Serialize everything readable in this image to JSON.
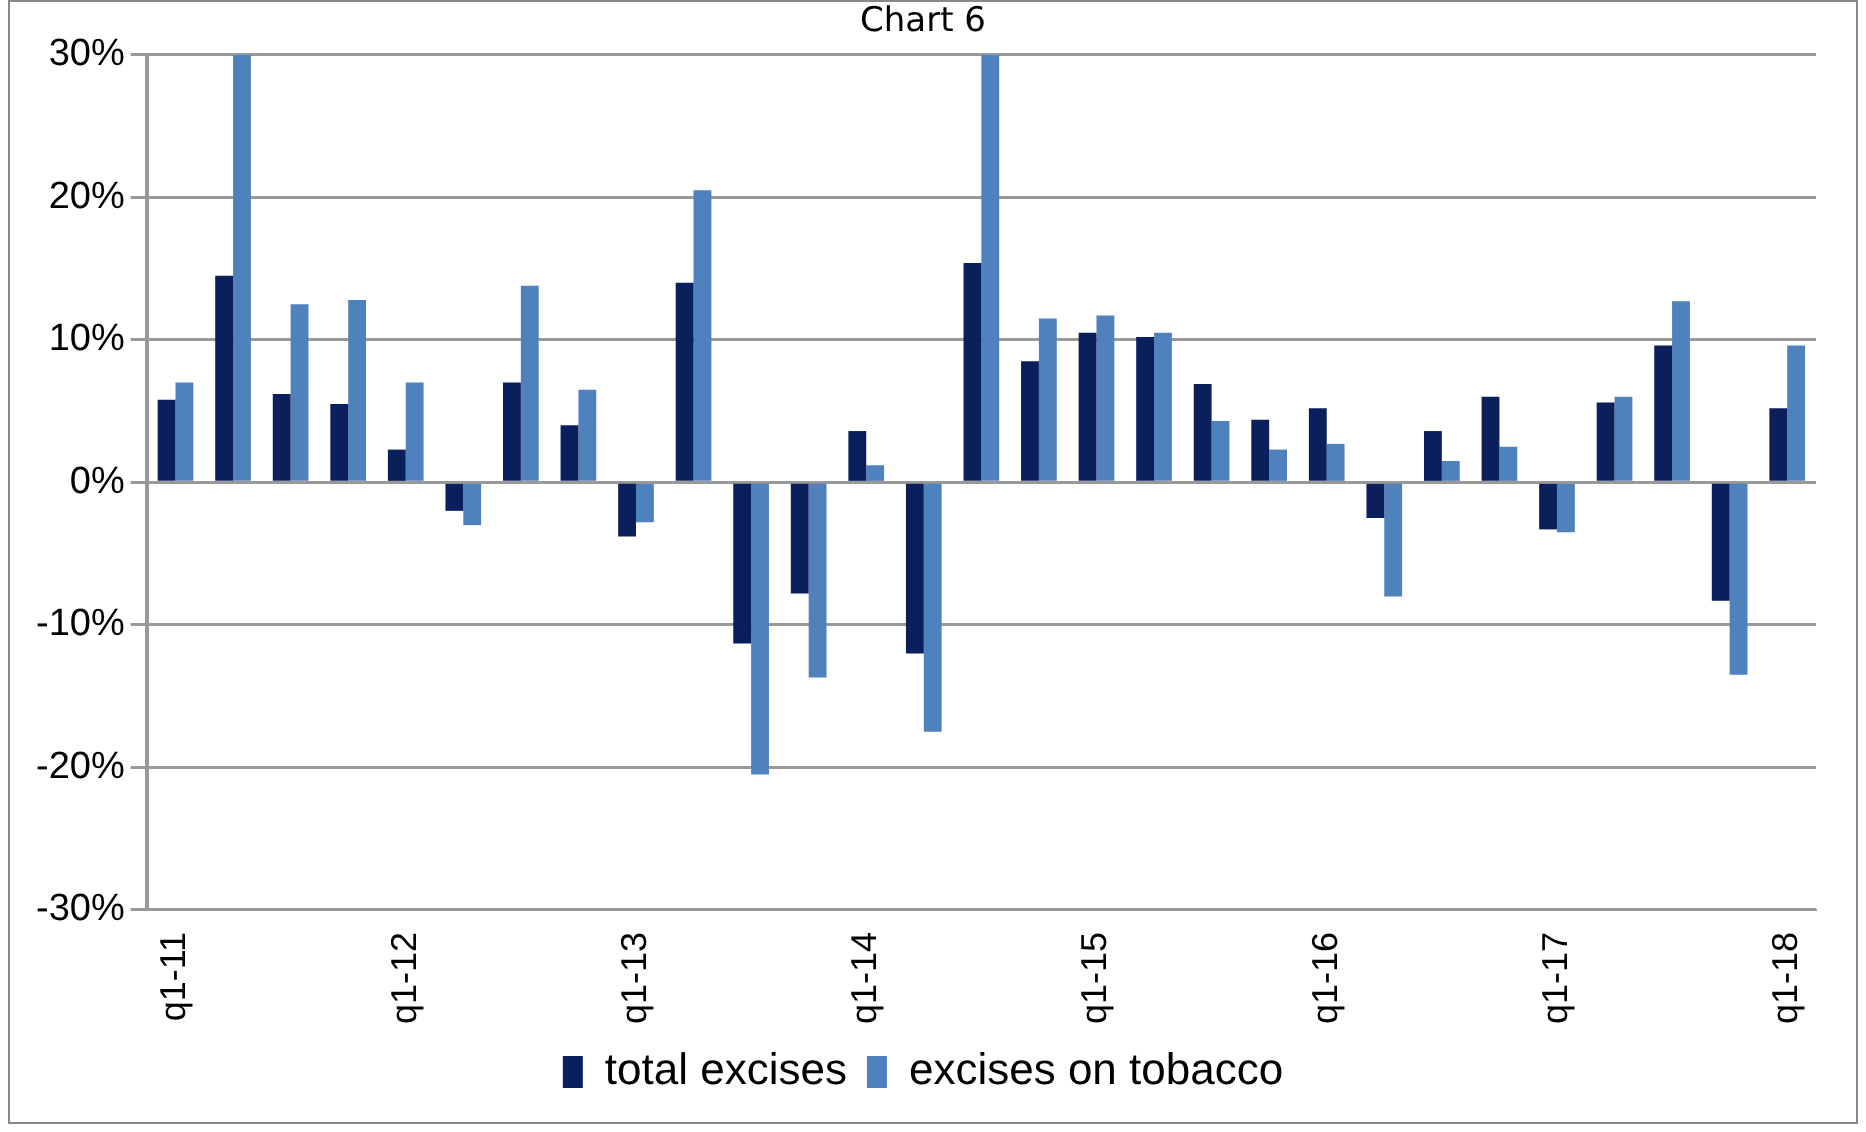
{
  "chart_data": {
    "type": "bar",
    "title": "Chart 6",
    "categories": [
      "q1-11",
      null,
      null,
      null,
      "q1-12",
      null,
      null,
      null,
      "q1-13",
      null,
      null,
      null,
      "q1-14",
      null,
      null,
      null,
      "q1-15",
      null,
      null,
      null,
      "q1-16",
      null,
      null,
      null,
      "q1-17",
      null,
      null,
      null,
      "q1-18"
    ],
    "series": [
      {
        "name": "total excises",
        "color": "#0b1f5c",
        "values": [
          5.8,
          14.5,
          6.2,
          5.5,
          2.3,
          -2,
          7,
          4,
          -3.8,
          14,
          -11.3,
          -7.8,
          3.6,
          -12,
          15.4,
          8.5,
          10.5,
          10.2,
          6.9,
          4.4,
          5.2,
          -2.5,
          3.6,
          6,
          -3.3,
          5.6,
          9.6,
          -8.3,
          5.2
        ]
      },
      {
        "name": "excises on tobacco",
        "color": "#4f81bd",
        "values": [
          7,
          30,
          12.5,
          12.8,
          7,
          -3,
          13.8,
          6.5,
          -2.8,
          20.5,
          -20.5,
          -13.7,
          1.2,
          -17.5,
          30,
          11.5,
          11.7,
          10.5,
          4.3,
          2.3,
          2.7,
          -8,
          1.5,
          2.5,
          -3.5,
          6,
          12.7,
          -13.5,
          9.6
        ]
      }
    ],
    "ylim": [
      -30,
      30
    ],
    "yticks": [
      {
        "value": -30,
        "label": "-30%"
      },
      {
        "value": -20,
        "label": "-20%"
      },
      {
        "value": -10,
        "label": "-10%"
      },
      {
        "value": 0,
        "label": "0%"
      },
      {
        "value": 10,
        "label": "10%"
      },
      {
        "value": 20,
        "label": "20%"
      },
      {
        "value": 30,
        "label": "30%"
      }
    ],
    "grid": "y",
    "legend": "bottom"
  }
}
